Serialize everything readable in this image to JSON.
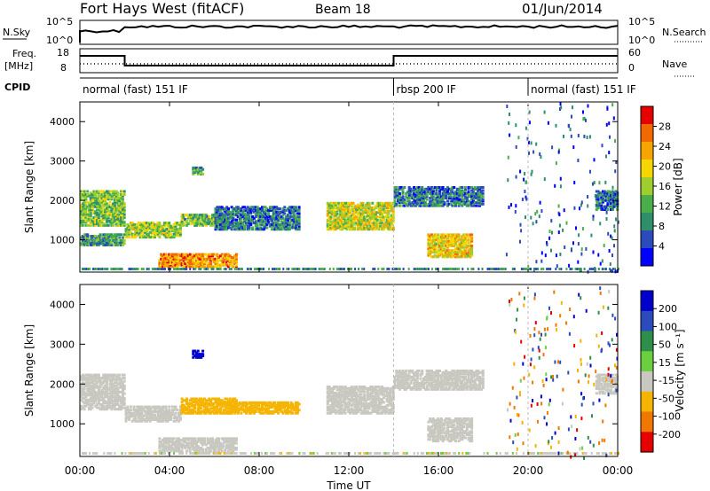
{
  "header": {
    "station": "Fort Hays West (fitACF)",
    "beam": "Beam 18",
    "date": "01/Jun/2014"
  },
  "nsky_panel": {
    "left_label": "N.Sky",
    "right_label": "N.Search",
    "left_ticks": [
      "10^5",
      "10^0"
    ],
    "right_ticks": [
      "10^5",
      "10^0"
    ]
  },
  "freq_panel": {
    "left_label_line1": "Freq.",
    "left_label_line2": "[MHz]",
    "right_label": "Nave",
    "left_ticks": [
      "18",
      "8"
    ],
    "right_ticks": [
      "60",
      "0"
    ],
    "freq_steps": [
      {
        "start": 0,
        "end": 2,
        "level": "high"
      },
      {
        "start": 2,
        "end": 14,
        "level": "low"
      },
      {
        "start": 14,
        "end": 24,
        "level": "high"
      }
    ]
  },
  "cpid": {
    "label": "CPID",
    "modes": [
      {
        "name": "normal (fast) 151 IF",
        "start": 0,
        "end": 14
      },
      {
        "name": "rbsp 200 IF",
        "start": 14,
        "end": 20
      },
      {
        "name": "normal (fast) 151 IF",
        "start": 20,
        "end": 24
      }
    ]
  },
  "chart_data": [
    {
      "type": "heatmap",
      "name": "power",
      "ylabel": "Slant Range [km]",
      "xlabel": "Time UT",
      "xlim": [
        0,
        24
      ],
      "ylim": [
        180,
        4500
      ],
      "yticks": [
        1000,
        2000,
        3000,
        4000
      ],
      "colorbar": {
        "label": "Power [dB]",
        "ticks": [
          4,
          8,
          12,
          16,
          20,
          24,
          28
        ],
        "range": [
          0,
          32
        ]
      },
      "regions": [
        {
          "t0": 0,
          "t1": 2,
          "r0": 1400,
          "r1": 2300,
          "v": 14
        },
        {
          "t0": 0,
          "t1": 2,
          "r0": 900,
          "r1": 1200,
          "v": 10
        },
        {
          "t0": 2,
          "t1": 4.5,
          "r0": 1100,
          "r1": 1500,
          "v": 16
        },
        {
          "t0": 4.5,
          "t1": 6.5,
          "r0": 1400,
          "r1": 1700,
          "v": 13
        },
        {
          "t0": 3.5,
          "t1": 7,
          "r0": 350,
          "r1": 700,
          "v": 24
        },
        {
          "t0": 5,
          "t1": 5.5,
          "r0": 2700,
          "r1": 2900,
          "v": 11
        },
        {
          "t0": 6,
          "t1": 9.8,
          "r0": 1300,
          "r1": 1900,
          "v": 8
        },
        {
          "t0": 11,
          "t1": 14,
          "r0": 1300,
          "r1": 2000,
          "v": 18
        },
        {
          "t0": 14,
          "t1": 18,
          "r0": 1900,
          "r1": 2400,
          "v": 8
        },
        {
          "t0": 15.5,
          "t1": 17.5,
          "r0": 600,
          "r1": 1200,
          "v": 20
        },
        {
          "t0": 23,
          "t1": 24,
          "r0": 1800,
          "r1": 2300,
          "v": 7
        }
      ]
    },
    {
      "type": "heatmap",
      "name": "velocity",
      "ylabel": "Slant Range [km]",
      "xlabel": "Time UT",
      "xlim": [
        0,
        24
      ],
      "ylim": [
        180,
        4500
      ],
      "yticks": [
        1000,
        2000,
        3000,
        4000
      ],
      "xticks": [
        "00:00",
        "04:00",
        "08:00",
        "12:00",
        "16:00",
        "20:00",
        "00:00"
      ],
      "colorbar": {
        "label": "Velocity [m s⁻¹]",
        "ticks": [
          200,
          100,
          50,
          15,
          -15,
          -50,
          -100,
          -200
        ]
      },
      "regions": [
        {
          "t0": 0,
          "t1": 2,
          "r0": 1400,
          "r1": 2300,
          "v": 0
        },
        {
          "t0": 2,
          "t1": 4.5,
          "r0": 1100,
          "r1": 1500,
          "v": 0
        },
        {
          "t0": 4.5,
          "t1": 7,
          "r0": 1300,
          "r1": 1700,
          "v": -30
        },
        {
          "t0": 6.5,
          "t1": 9.8,
          "r0": 1300,
          "r1": 1600,
          "v": -60
        },
        {
          "t0": 3.5,
          "t1": 7,
          "r0": 350,
          "r1": 700,
          "v": 0
        },
        {
          "t0": 5,
          "t1": 5.5,
          "r0": 2700,
          "r1": 2900,
          "v": 250
        },
        {
          "t0": 11,
          "t1": 14,
          "r0": 1300,
          "r1": 2000,
          "v": 0
        },
        {
          "t0": 14,
          "t1": 18,
          "r0": 1900,
          "r1": 2400,
          "v": 0
        },
        {
          "t0": 15.5,
          "t1": 17.5,
          "r0": 600,
          "r1": 1200,
          "v": 0
        },
        {
          "t0": 23,
          "t1": 24,
          "r0": 1800,
          "r1": 2300,
          "v": 0
        }
      ]
    }
  ],
  "colors": {
    "power_scale": [
      "#0000ff",
      "#2b4bbd",
      "#2f8f6a",
      "#4aaf4a",
      "#9fcf2f",
      "#f5d600",
      "#f5a400",
      "#f06a00",
      "#e60000"
    ],
    "velocity_scale": [
      "#e60000",
      "#f07800",
      "#f5b400",
      "#c8c8c0",
      "#6ccf3f",
      "#2f8f4a",
      "#2b4bbd",
      "#0000cc"
    ]
  }
}
